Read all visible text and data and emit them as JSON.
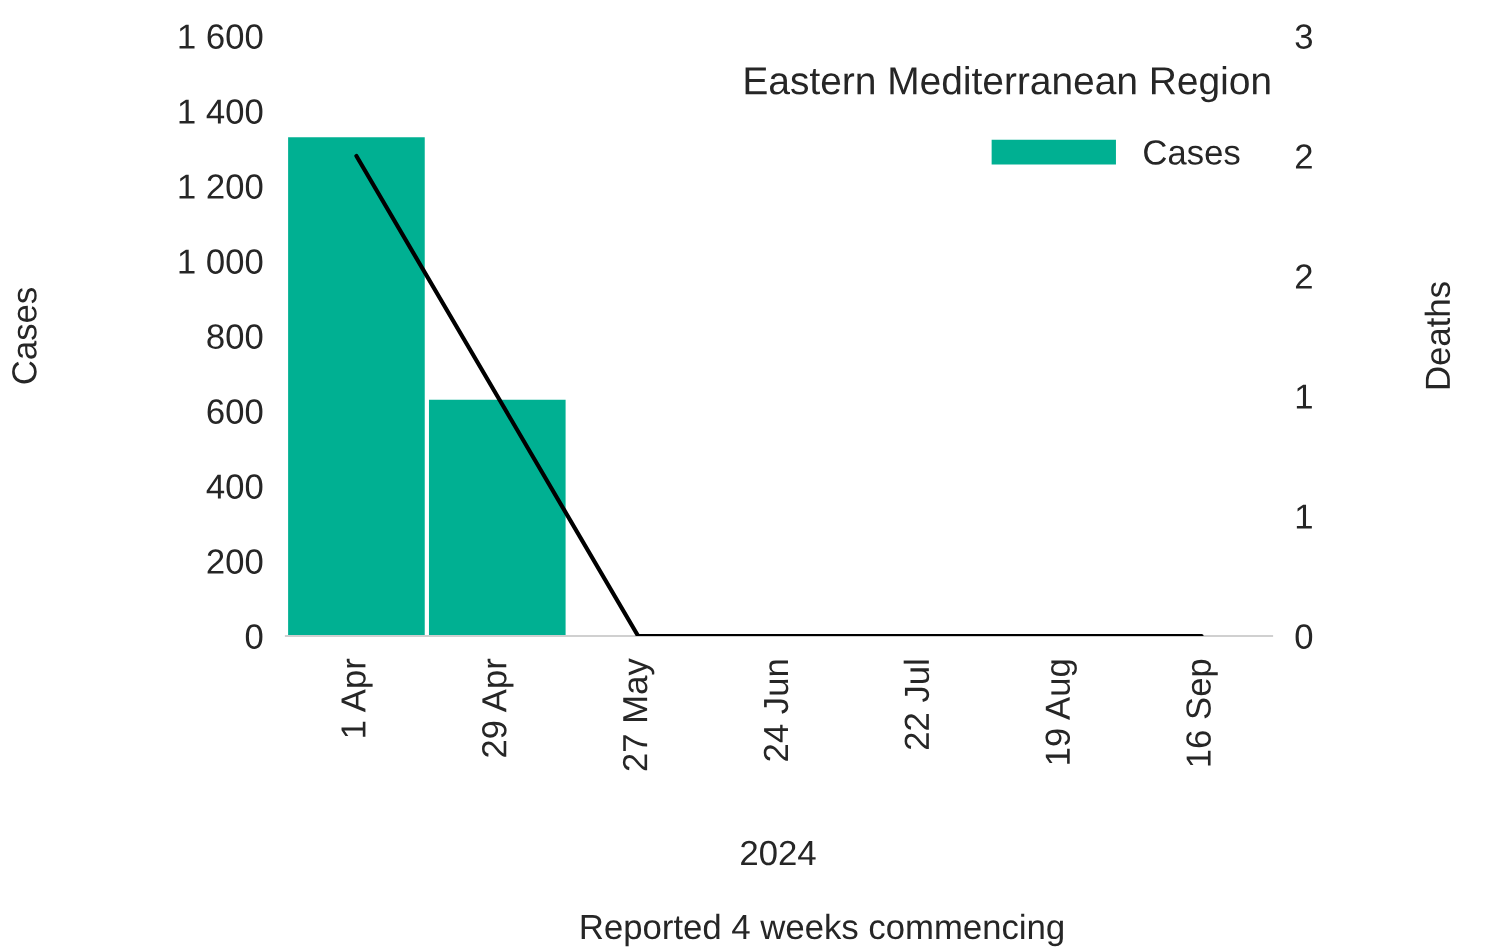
{
  "chart_data": {
    "type": "bar",
    "title": "Eastern Mediterranean Region",
    "categories": [
      "1 Apr",
      "29 Apr",
      "27 May",
      "24 Jun",
      "22 Jul",
      "19 Aug",
      "16 Sep"
    ],
    "series": [
      {
        "name": "Cases",
        "color": "#00b092",
        "values": [
          1330,
          630,
          0,
          0,
          0,
          0,
          0
        ]
      },
      {
        "type": "line",
        "axis": "y2",
        "color": "#000000",
        "values": [
          2.4,
          1.2,
          0,
          0,
          0,
          0,
          0
        ]
      }
    ],
    "ylabel": "Cases",
    "y2label": "Deaths",
    "xlabel": "Reported 4 weeks commencing",
    "annotations": [
      "2024"
    ],
    "ylim": [
      0,
      1600
    ],
    "yticks": [
      {
        "value": 0,
        "label": "0"
      },
      {
        "value": 200,
        "label": "200"
      },
      {
        "value": 400,
        "label": "400"
      },
      {
        "value": 600,
        "label": "600"
      },
      {
        "value": 800,
        "label": "800"
      },
      {
        "value": 1000,
        "label": "1 000"
      },
      {
        "value": 1200,
        "label": "1 200"
      },
      {
        "value": 1400,
        "label": "1 400"
      },
      {
        "value": 1600,
        "label": "1 600"
      }
    ],
    "y2lim": [
      0,
      3
    ],
    "y2ticks": [
      0,
      {
        "value": 0.6,
        "label": "1"
      },
      {
        "value": 1.2,
        "label": "1"
      },
      {
        "value": 1.8,
        "label": "2"
      },
      {
        "value": 2.4,
        "label": "2"
      },
      3
    ],
    "grid": false,
    "legend": "top right",
    "marker": "none",
    "line_style": "solid"
  }
}
